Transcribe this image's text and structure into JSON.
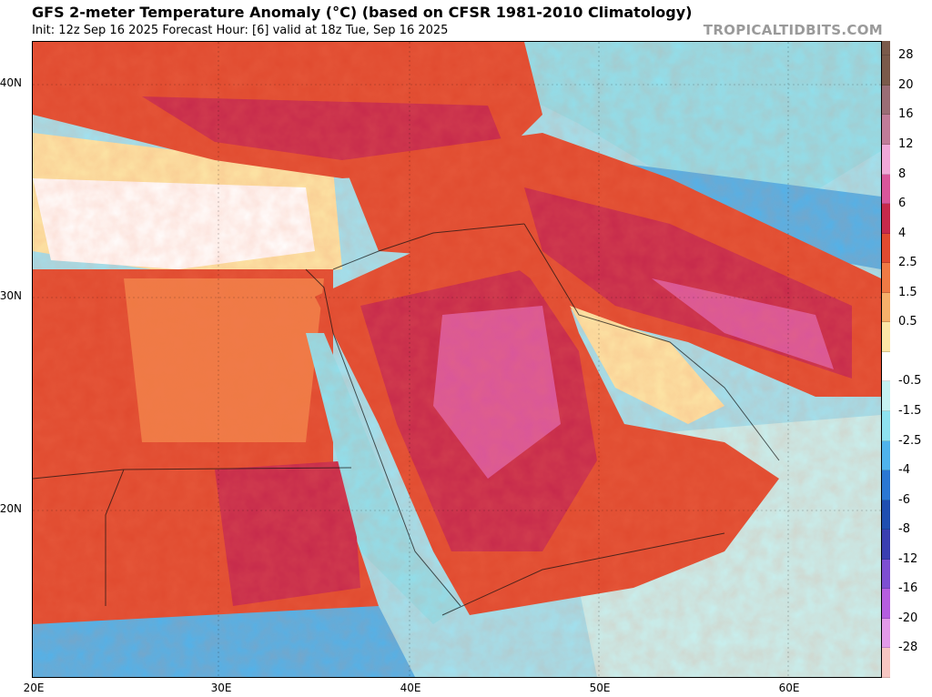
{
  "header": {
    "title": "GFS 2-meter Temperature Anomaly (°C) (based on CFSR 1981-2010 Climatology)",
    "subtitle": "Init: 12z Sep 16 2025   Forecast Hour: [6]   valid at 18z Tue, Sep 16 2025",
    "brand": "TROPICALTIDBITS.COM"
  },
  "map": {
    "lat_labels": [
      "40N",
      "30N",
      "20N"
    ],
    "lon_labels": [
      "20E",
      "30E",
      "40E",
      "50E",
      "60E"
    ]
  },
  "colorbar": {
    "levels": [
      {
        "label": "28",
        "color": "#7a5a4a"
      },
      {
        "label": "20",
        "color": "#9a6d75"
      },
      {
        "label": "16",
        "color": "#c07c98"
      },
      {
        "label": "12",
        "color": "#f0a8d8"
      },
      {
        "label": "8",
        "color": "#d9569b"
      },
      {
        "label": "6",
        "color": "#c6294b"
      },
      {
        "label": "4",
        "color": "#e04a2f"
      },
      {
        "label": "2.5",
        "color": "#ef7a44"
      },
      {
        "label": "1.5",
        "color": "#f6b06a"
      },
      {
        "label": "0.5",
        "color": "#fce6a6"
      },
      {
        "label": "",
        "color": "#ffffff"
      },
      {
        "label": "-0.5",
        "color": "#c6f2f2"
      },
      {
        "label": "-1.5",
        "color": "#8ee2f0"
      },
      {
        "label": "-2.5",
        "color": "#4fb3ec"
      },
      {
        "label": "-4",
        "color": "#2a78d3"
      },
      {
        "label": "-6",
        "color": "#1f4fb0"
      },
      {
        "label": "-8",
        "color": "#3a3fb1"
      },
      {
        "label": "-12",
        "color": "#7d4fd2"
      },
      {
        "label": "-16",
        "color": "#b55ee0"
      },
      {
        "label": "-20",
        "color": "#e29ae8"
      },
      {
        "label": "-28",
        "color": "#f7c6c2"
      }
    ],
    "top_color": "#7a5a4a"
  }
}
